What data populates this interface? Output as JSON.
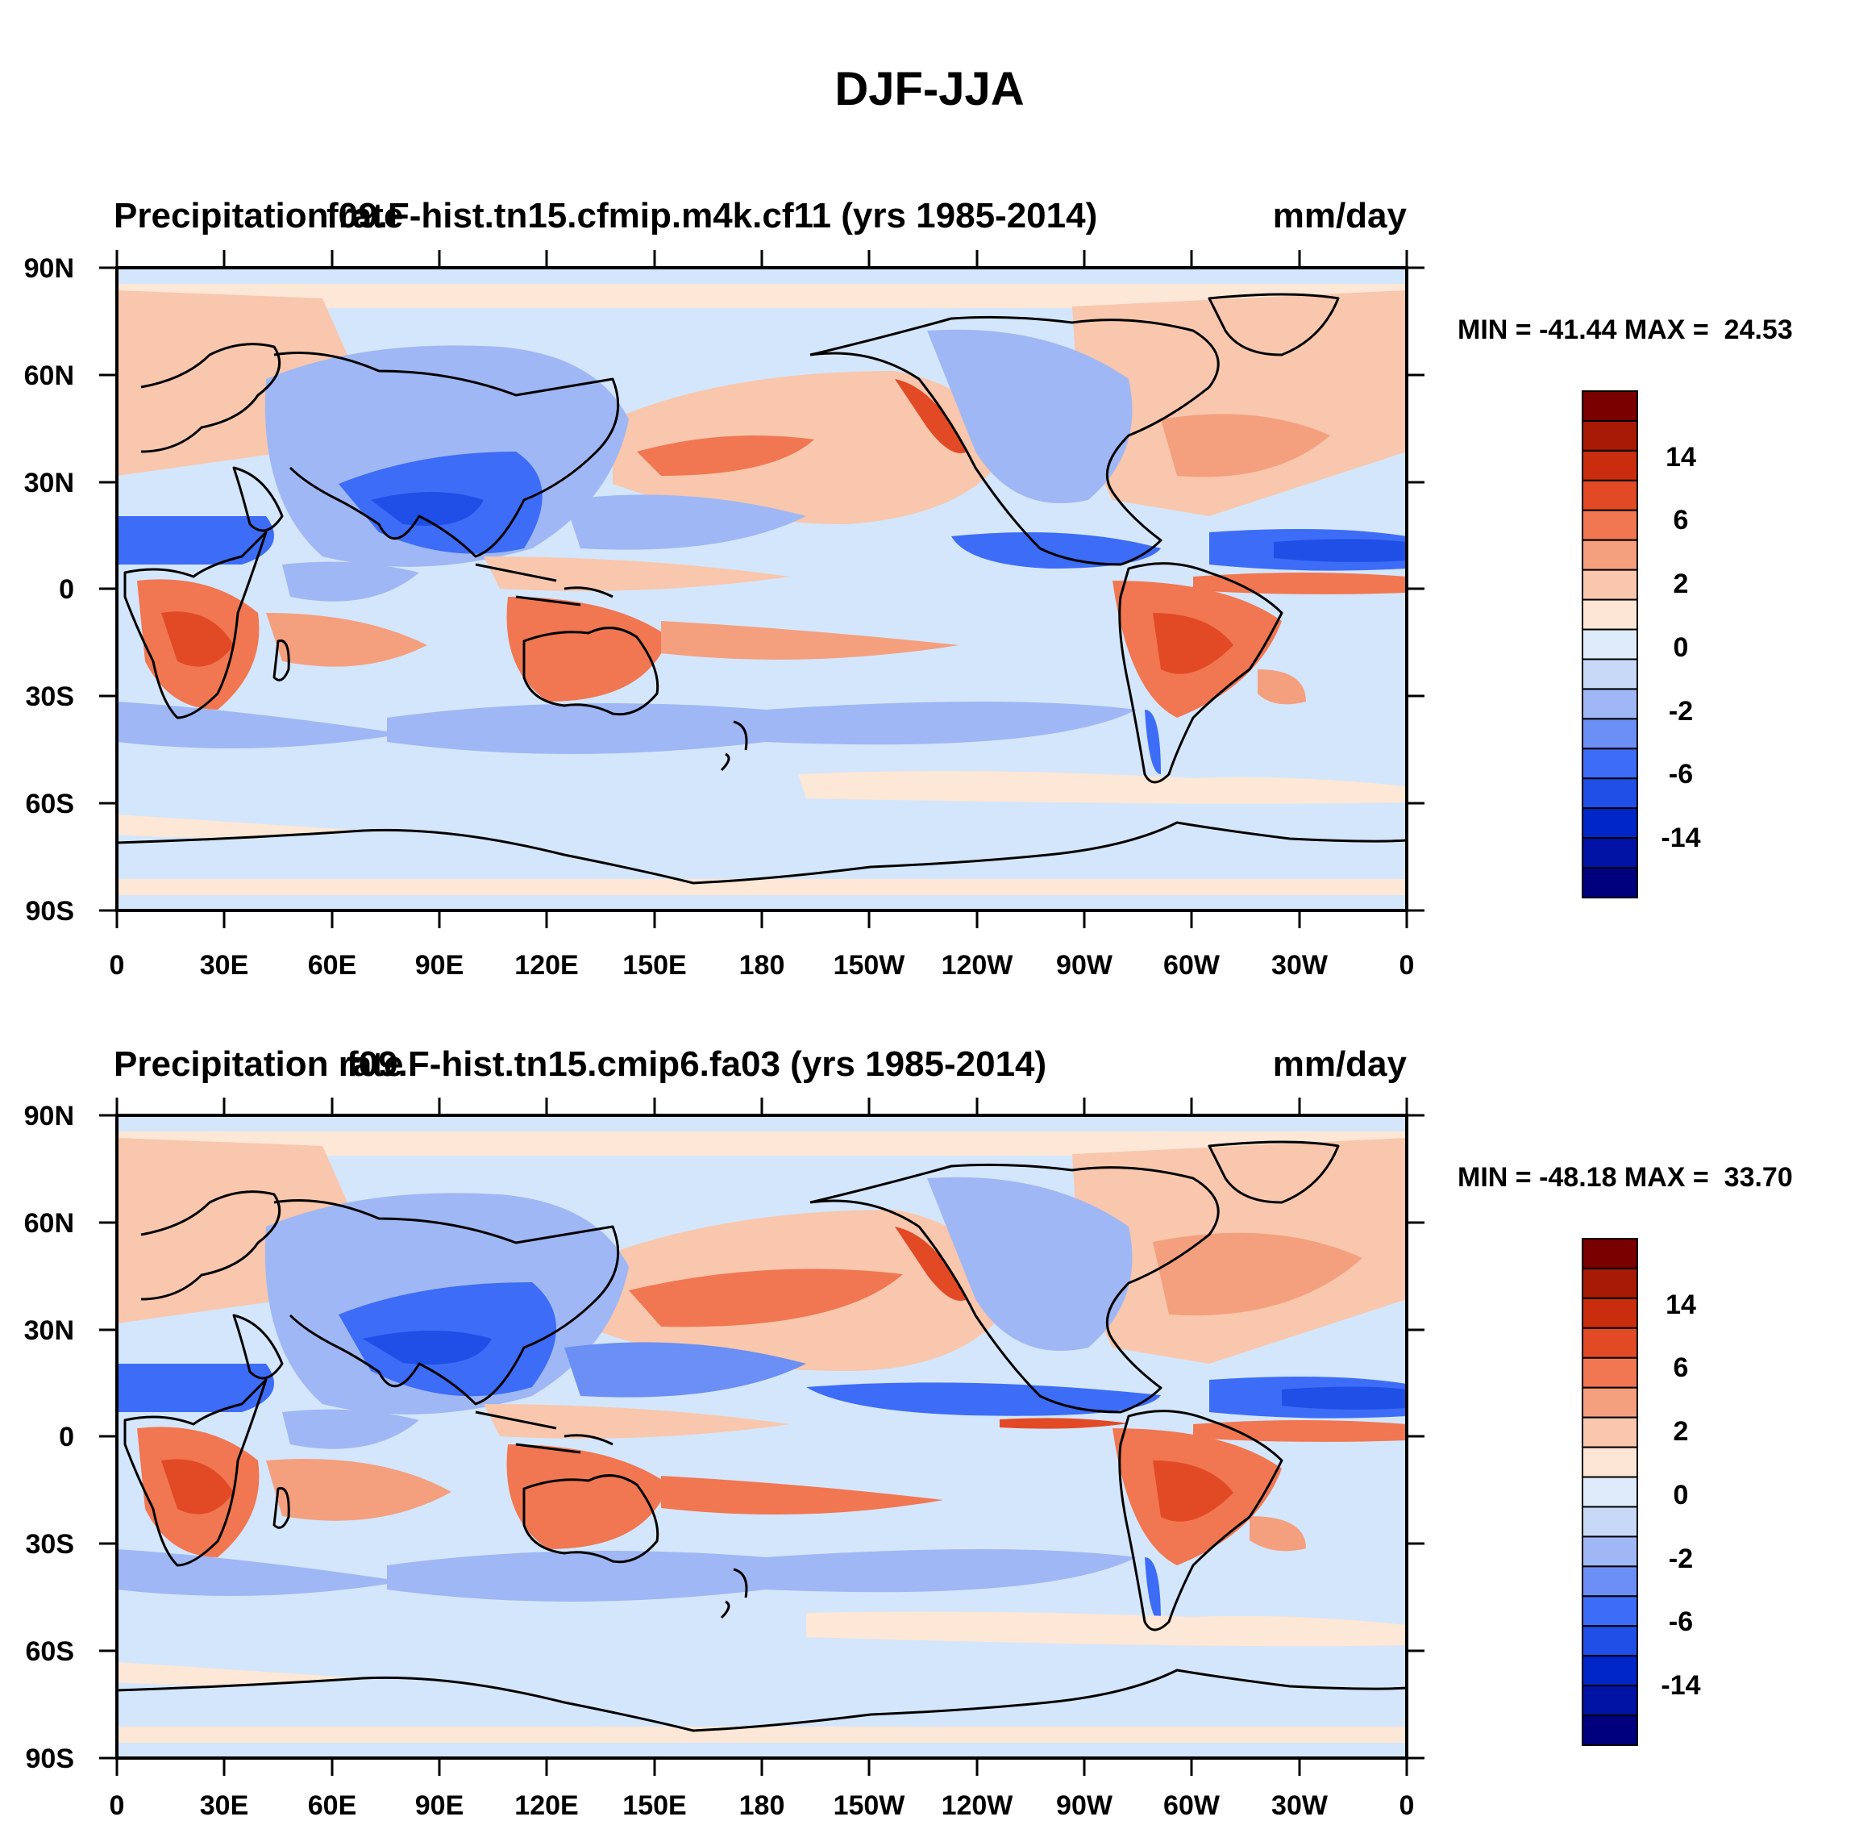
{
  "figure": {
    "title": "DJF-JJA"
  },
  "colors": {
    "levels_fill": [
      "#00007f",
      "#0013a4",
      "#0026c8",
      "#1f4fe6",
      "#3d6cf6",
      "#6b8ff4",
      "#9fb7f4",
      "#c8d9f8",
      "#deebfa",
      "#fde6d6",
      "#f8c7ad",
      "#f4a07f",
      "#f07752",
      "#e24a26",
      "#c92d0e",
      "#a61a06",
      "#7a0000"
    ],
    "bands": [
      "#d4e6fb",
      "#fde7d6",
      "#9fb7f4",
      "#6b8ff4",
      "#f8c7ad",
      "#f4a07f",
      "#f07752",
      "#3d6cf6",
      "#1f4fe6",
      "#e24a26"
    ],
    "land_line": "#000000"
  },
  "chart_data": [
    {
      "type": "heatmap",
      "title_left": "Precipitation rate",
      "title_center": "f09.F-hist.tn15.cfmip.m4k.cf11 (yrs 1985-2014)",
      "title_right": "mm/day",
      "stats": "MIN = -41.44 MAX =  24.53",
      "min": -41.44,
      "max": 24.53,
      "x_ticks": [
        "0",
        "30E",
        "60E",
        "90E",
        "120E",
        "150E",
        "180",
        "150W",
        "120W",
        "90W",
        "60W",
        "30W",
        "0"
      ],
      "y_ticks": [
        "90N",
        "60N",
        "30N",
        "0",
        "30S",
        "60S",
        "90S"
      ],
      "xlim": [
        0,
        360
      ],
      "ylim": [
        -90,
        90
      ],
      "colorbar_labels": [
        "14",
        "6",
        "2",
        "0",
        "-2",
        "-6",
        "-14"
      ],
      "colorbar_levels": [
        -20,
        -14,
        -10,
        -6,
        -4,
        -2,
        -1,
        -0.5,
        0,
        0.5,
        1,
        2,
        4,
        6,
        10,
        14,
        20
      ]
    },
    {
      "type": "heatmap",
      "title_left": "Precipitation rate",
      "title_center": "f09.F-hist.tn15.cmip6.fa03 (yrs 1985-2014)",
      "title_right": "mm/day",
      "stats": "MIN = -48.18 MAX =  33.70",
      "min": -48.18,
      "max": 33.7,
      "x_ticks": [
        "0",
        "30E",
        "60E",
        "90E",
        "120E",
        "150E",
        "180",
        "150W",
        "120W",
        "90W",
        "60W",
        "30W",
        "0"
      ],
      "y_ticks": [
        "90N",
        "60N",
        "30N",
        "0",
        "30S",
        "60S",
        "90S"
      ],
      "xlim": [
        0,
        360
      ],
      "ylim": [
        -90,
        90
      ],
      "colorbar_labels": [
        "14",
        "6",
        "2",
        "0",
        "-2",
        "-6",
        "-14"
      ],
      "colorbar_levels": [
        -20,
        -14,
        -10,
        -6,
        -4,
        -2,
        -1,
        -0.5,
        0,
        0.5,
        1,
        2,
        4,
        6,
        10,
        14,
        20
      ]
    }
  ]
}
